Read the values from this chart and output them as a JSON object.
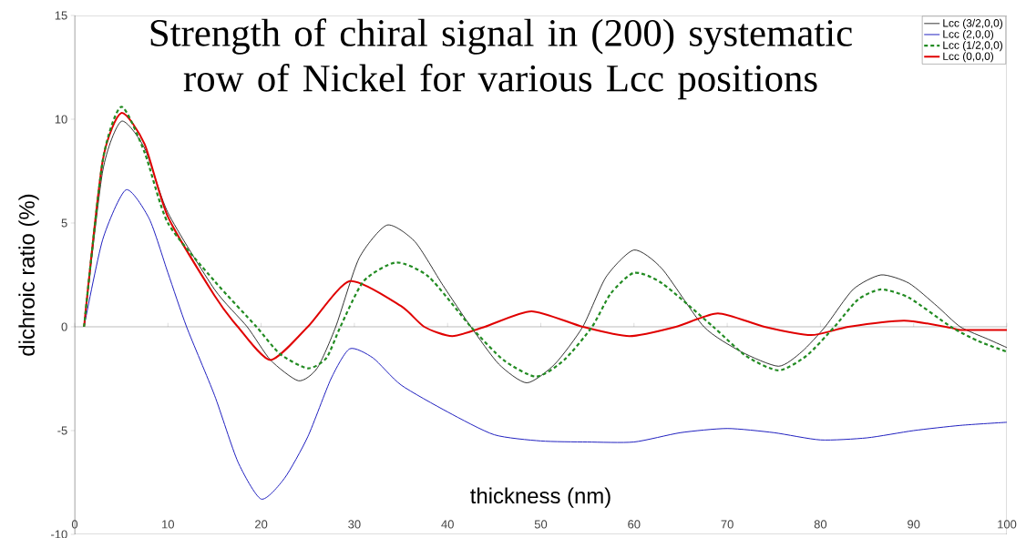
{
  "chart_data": {
    "type": "line",
    "title": "Strength of chiral signal in (200) systematic row of Nickel for various Lcc positions",
    "xlabel": "thickness (nm)",
    "ylabel": "dichroic ratio (%)",
    "xlim": [
      0,
      100
    ],
    "xticks": [
      0,
      10,
      20,
      30,
      40,
      50,
      60,
      70,
      80,
      90,
      100
    ],
    "ylim": [
      -10,
      15
    ],
    "yticks": [
      -10,
      -5,
      0,
      5,
      10,
      15
    ],
    "legend": "top right",
    "marker": "none",
    "series": [
      {
        "name": "Lcc (3/2,0,0)",
        "color": "#000000",
        "line_style": "solid",
        "x": [
          1,
          3,
          5,
          7.5,
          10,
          15,
          18.5,
          21,
          24,
          26,
          28,
          30.5,
          33.5,
          36.5,
          39.5,
          42.5,
          45.5,
          48.5,
          51.5,
          54.5,
          57,
          60,
          63,
          67.5,
          71.5,
          75.5,
          78,
          80.5,
          83.5,
          86.5,
          89.5,
          92.5,
          95,
          98,
          100
        ],
        "values": [
          0,
          7.5,
          9.9,
          8.6,
          5.5,
          1.8,
          0,
          -1.6,
          -2.6,
          -2,
          0,
          3.3,
          4.9,
          4.1,
          2,
          0,
          -1.8,
          -2.7,
          -1.8,
          0,
          2.4,
          3.7,
          2.8,
          0,
          -1.2,
          -1.9,
          -1.2,
          0,
          1.8,
          2.5,
          2.1,
          1,
          0,
          -0.6,
          -1.0
        ]
      },
      {
        "name": "Lcc (2,0,0)",
        "color": "#2020c0",
        "line_style": "solid",
        "x": [
          1,
          3,
          5.5,
          8,
          10,
          12,
          15,
          17.5,
          20,
          22.5,
          25,
          27.5,
          29.5,
          32,
          35,
          40,
          45,
          50,
          55,
          60,
          65,
          70,
          75,
          80,
          85,
          90,
          95,
          100
        ],
        "values": [
          0,
          4.2,
          6.6,
          5.2,
          2.6,
          0,
          -3.3,
          -6.5,
          -8.3,
          -7.3,
          -5.3,
          -2.5,
          -1.06,
          -1.5,
          -2.8,
          -4.1,
          -5.2,
          -5.5,
          -5.55,
          -5.55,
          -5.1,
          -4.9,
          -5.1,
          -5.45,
          -5.35,
          -5.0,
          -4.75,
          -4.6
        ]
      },
      {
        "name": "Lcc (1/2,0,0)",
        "color": "#228b22",
        "line_style": "dashed",
        "x": [
          1,
          3,
          5,
          7.5,
          10,
          15,
          19.5,
          22,
          25,
          27,
          28.5,
          31,
          34.5,
          38,
          42.5,
          46,
          49.5,
          52.5,
          55.5,
          57.5,
          60,
          63,
          68.5,
          72,
          75.5,
          78.5,
          81.5,
          84,
          86.5,
          89.5,
          94,
          97,
          100
        ],
        "values": [
          0,
          8,
          10.6,
          8.4,
          5.0,
          2.2,
          0,
          -1.3,
          -2.0,
          -1.5,
          0,
          2.2,
          3.1,
          2.4,
          0,
          -1.6,
          -2.4,
          -1.6,
          0,
          1.6,
          2.6,
          2.1,
          0,
          -1.4,
          -2.1,
          -1.4,
          0,
          1.3,
          1.8,
          1.4,
          0,
          -0.7,
          -1.2
        ]
      },
      {
        "name": "Lcc (0,0,0)",
        "color": "#e00000",
        "line_style": "solid",
        "x": [
          1,
          3,
          5,
          7.5,
          10,
          15,
          17.5,
          21,
          25,
          29.5,
          35,
          37.5,
          40.5,
          44,
          49,
          54.5,
          59.5,
          64.5,
          69,
          74,
          79,
          83,
          89,
          94,
          95,
          100
        ],
        "values": [
          0,
          8,
          10.3,
          8.8,
          5.3,
          1.5,
          0,
          -1.6,
          0,
          2.2,
          1.0,
          0,
          -0.45,
          0,
          0.75,
          0,
          -0.45,
          0,
          0.65,
          0,
          -0.4,
          0,
          0.3,
          -0.05,
          -0.15,
          -0.15
        ]
      }
    ]
  }
}
